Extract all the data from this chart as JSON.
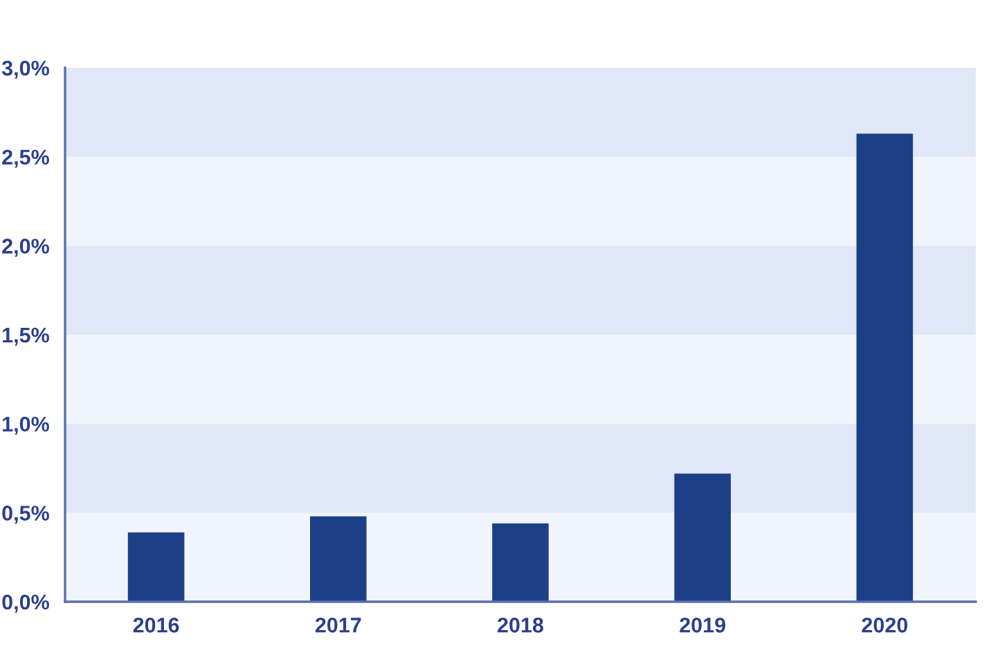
{
  "chart_data": {
    "type": "bar",
    "categories": [
      "2016",
      "2017",
      "2018",
      "2019",
      "2020"
    ],
    "values": [
      0.39,
      0.48,
      0.44,
      0.72,
      2.63
    ],
    "color": "#1c3f87",
    "ylim": [
      0,
      3.0
    ],
    "yticks": [
      {
        "value": 0,
        "label": "0,0%"
      },
      {
        "value": 0.5,
        "label": "0,5%"
      },
      {
        "value": 1.0,
        "label": "1,0%"
      },
      {
        "value": 1.5,
        "label": "1,5%"
      },
      {
        "value": 2.0,
        "label": "2,0%"
      },
      {
        "value": 2.5,
        "label": "2,5%"
      },
      {
        "value": 3.0,
        "label": "3,0%"
      }
    ],
    "bands": [
      {
        "axis": "y",
        "from": 0,
        "to": 0.5,
        "color": "#f0f4fd"
      },
      {
        "axis": "y",
        "from": 0.5,
        "to": 1.0,
        "color": "#e0e7f6"
      },
      {
        "axis": "y",
        "from": 1.0,
        "to": 1.5,
        "color": "#f0f4fd"
      },
      {
        "axis": "y",
        "from": 1.5,
        "to": 2.0,
        "color": "#e0e7f6"
      },
      {
        "axis": "y",
        "from": 2.0,
        "to": 2.5,
        "color": "#f0f4fd"
      },
      {
        "axis": "y",
        "from": 2.5,
        "to": 3.0,
        "color": "#e0e7f6"
      }
    ],
    "grid": false,
    "legend": false
  }
}
